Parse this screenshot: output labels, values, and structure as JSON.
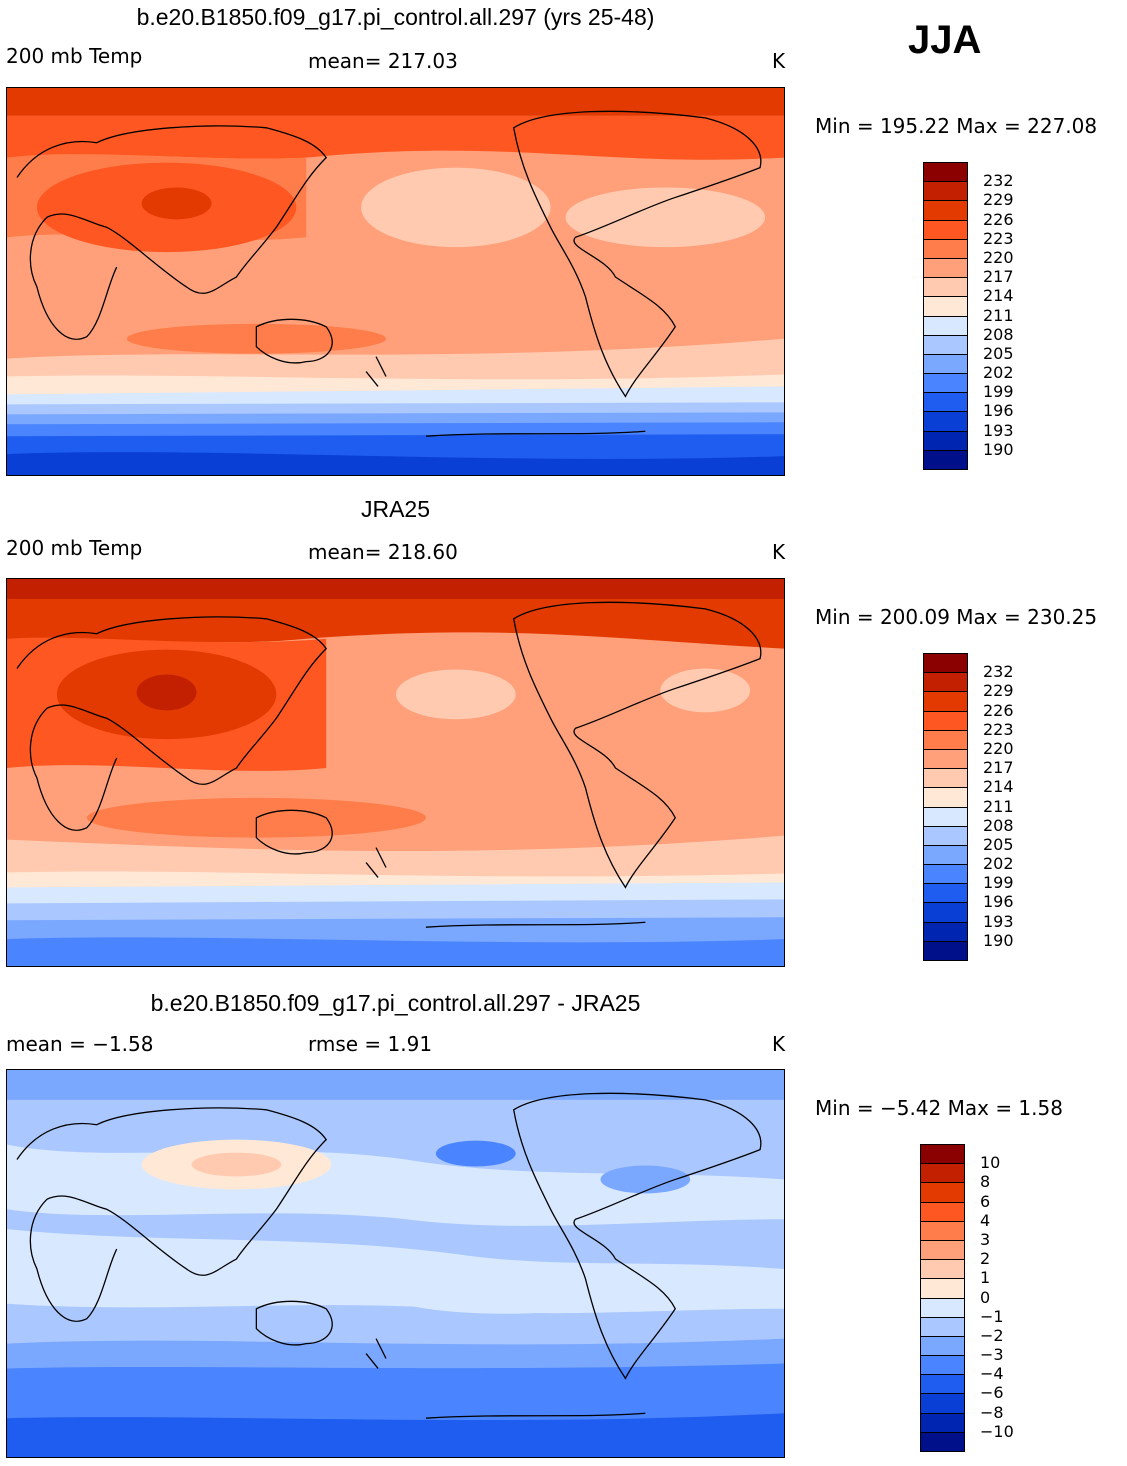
{
  "season": "JJA",
  "panels": [
    {
      "title": "b.e20.B1850.f09_g17.pi_control.all.297 (yrs 25-48)",
      "left_label": "200 mb Temp",
      "center_label": "mean= 217.03",
      "units": "K",
      "minmax": "Min = 195.22 Max = 227.08",
      "colorbar": {
        "labels": [
          "232",
          "229",
          "226",
          "223",
          "220",
          "217",
          "214",
          "211",
          "208",
          "205",
          "202",
          "199",
          "196",
          "193",
          "190"
        ],
        "colors": [
          "#8b0000",
          "#c22000",
          "#e23a00",
          "#ff5722",
          "#ff7d4a",
          "#ffa07a",
          "#ffcab0",
          "#ffe8d6",
          "#d8e8ff",
          "#aac8ff",
          "#7aa7ff",
          "#4a84ff",
          "#1f5cf0",
          "#0a3fd6",
          "#0025b0",
          "#00108a"
        ]
      }
    },
    {
      "title": "JRA25",
      "left_label": "200 mb Temp",
      "center_label": "mean= 218.60",
      "units": "K",
      "minmax": "Min = 200.09 Max = 230.25",
      "colorbar": {
        "labels": [
          "232",
          "229",
          "226",
          "223",
          "220",
          "217",
          "214",
          "211",
          "208",
          "205",
          "202",
          "199",
          "196",
          "193",
          "190"
        ],
        "colors": [
          "#8b0000",
          "#c22000",
          "#e23a00",
          "#ff5722",
          "#ff7d4a",
          "#ffa07a",
          "#ffcab0",
          "#ffe8d6",
          "#d8e8ff",
          "#aac8ff",
          "#7aa7ff",
          "#4a84ff",
          "#1f5cf0",
          "#0a3fd6",
          "#0025b0",
          "#00108a"
        ]
      }
    },
    {
      "title": "b.e20.B1850.f09_g17.pi_control.all.297 - JRA25",
      "left_label": "mean = −1.58",
      "center_label": "rmse = 1.91",
      "units": "K",
      "minmax": "Min = −5.42 Max = 1.58",
      "colorbar": {
        "labels": [
          "10",
          "8",
          "6",
          "4",
          "3",
          "2",
          "1",
          "0",
          "−1",
          "−2",
          "−3",
          "−4",
          "−6",
          "−8",
          "−10"
        ],
        "colors": [
          "#8b0000",
          "#c22000",
          "#e23a00",
          "#ff5722",
          "#ff7d4a",
          "#ffa07a",
          "#ffcab0",
          "#ffe8d6",
          "#d8e8ff",
          "#aac8ff",
          "#7aa7ff",
          "#4a84ff",
          "#1f5cf0",
          "#0a3fd6",
          "#0025b0",
          "#00108a"
        ]
      }
    }
  ]
}
